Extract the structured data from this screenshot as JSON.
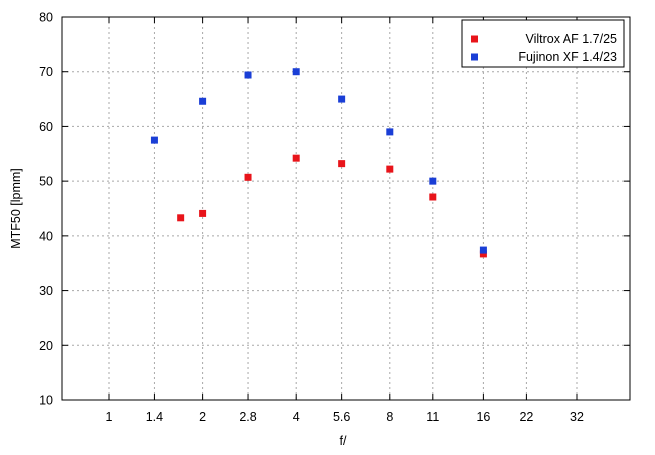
{
  "chart_data": {
    "type": "scatter",
    "xlabel": "f/",
    "ylabel": "MTF50 [lpmm]",
    "x_ticks": [
      "1",
      "1.4",
      "2",
      "2.8",
      "4",
      "5.6",
      "8",
      "11",
      "16",
      "22",
      "32"
    ],
    "ylim": [
      10,
      80
    ],
    "y_ticks": [
      10,
      20,
      30,
      40,
      50,
      60,
      70,
      80
    ],
    "grid": true,
    "legend_position": "top-right",
    "series": [
      {
        "name": "Viltrox AF 1.7/25",
        "color": "#e8141a",
        "points": [
          {
            "x": "1.7",
            "y": 43.3
          },
          {
            "x": "2",
            "y": 44.1
          },
          {
            "x": "2.8",
            "y": 50.7
          },
          {
            "x": "4",
            "y": 54.2
          },
          {
            "x": "5.6",
            "y": 53.2
          },
          {
            "x": "8",
            "y": 52.2
          },
          {
            "x": "11",
            "y": 47.1
          },
          {
            "x": "16",
            "y": 36.7
          }
        ]
      },
      {
        "name": "Fujinon XF 1.4/23",
        "color": "#1a3ed6",
        "points": [
          {
            "x": "1.4",
            "y": 57.5
          },
          {
            "x": "2",
            "y": 64.6
          },
          {
            "x": "2.8",
            "y": 69.4
          },
          {
            "x": "4",
            "y": 70.0
          },
          {
            "x": "5.6",
            "y": 65.0
          },
          {
            "x": "8",
            "y": 59.0
          },
          {
            "x": "11",
            "y": 50.0
          },
          {
            "x": "16",
            "y": 37.4
          }
        ]
      }
    ]
  }
}
